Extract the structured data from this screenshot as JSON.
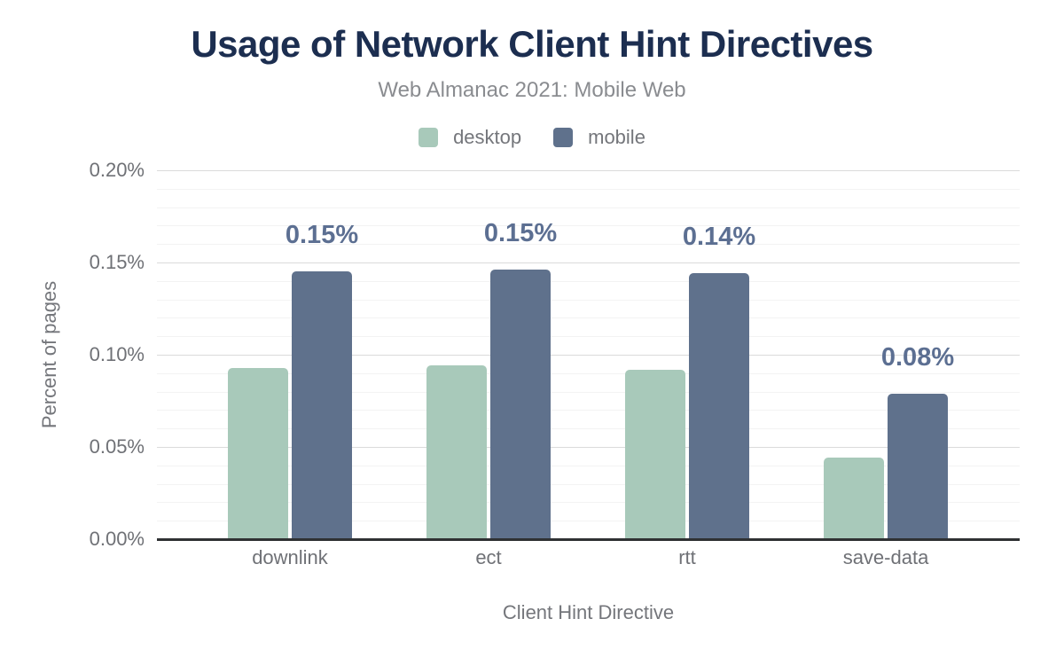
{
  "header": {
    "title": "Usage of Network Client Hint Directives",
    "subtitle": "Web Almanac 2021: Mobile Web"
  },
  "legend": {
    "items": [
      {
        "label": "desktop",
        "color": "#a8c9ba"
      },
      {
        "label": "mobile",
        "color": "#5f718c"
      }
    ]
  },
  "colors": {
    "title_text": "#1c2e50",
    "subtitle_text": "#8a8c90",
    "axis_text": "#6f7176",
    "desktop_bar": "#a8c9ba",
    "mobile_bar": "#5f718c",
    "data_label": "#5c6f92",
    "grid_major": "#dbdbdb",
    "grid_minor": "#f3f3f3",
    "axis_line": "#2f3133",
    "background": "#ffffff"
  },
  "chart_data": {
    "type": "bar",
    "title": "Usage of Network Client Hint Directives",
    "subtitle": "Web Almanac 2021: Mobile Web",
    "xlabel": "Client Hint Directive",
    "ylabel": "Percent of pages",
    "categories": [
      "downlink",
      "ect",
      "rtt",
      "save-data"
    ],
    "series": [
      {
        "name": "desktop",
        "color": "#a8c9ba",
        "values": [
          0.093,
          0.094,
          0.092,
          0.044
        ]
      },
      {
        "name": "mobile",
        "color": "#5f718c",
        "values": [
          0.145,
          0.146,
          0.144,
          0.079
        ]
      }
    ],
    "bar_labels": {
      "series": "mobile",
      "values": [
        "0.15%",
        "0.15%",
        "0.14%",
        "0.08%"
      ]
    },
    "ylim": [
      0,
      0.2
    ],
    "ytick_values": [
      0,
      0.05,
      0.1,
      0.15,
      0.2
    ],
    "yticks": [
      "0.00%",
      "0.05%",
      "0.10%",
      "0.15%",
      "0.20%"
    ],
    "minor_tick_step": 0.01,
    "grid": "horizontal-major-and-minor",
    "legend_position": "top",
    "unit": "percent of pages"
  }
}
